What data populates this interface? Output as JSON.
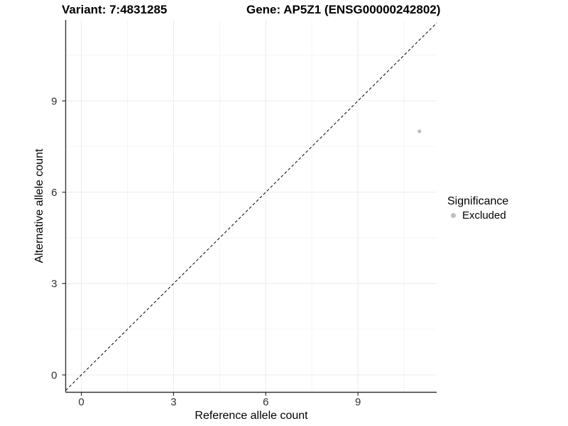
{
  "titles": {
    "variant": "Variant: 7:4831285",
    "gene": "Gene: AP5Z1 (ENSG00000242802)"
  },
  "legend": {
    "title": "Significance",
    "items": [
      {
        "label": "Excluded",
        "color": "#bebebe"
      }
    ]
  },
  "chart_data": {
    "type": "scatter",
    "title": "",
    "xlabel": "Reference allele count",
    "ylabel": "Alternative allele count",
    "xlim": [
      -0.51,
      11.56
    ],
    "ylim": [
      -0.57,
      11.66
    ],
    "x_ticks": [
      0,
      3,
      6,
      9
    ],
    "y_ticks": [
      0,
      3,
      6,
      9
    ],
    "x_minor_ticks": [
      1.5,
      4.5,
      7.5,
      10.5
    ],
    "y_minor_ticks": [
      1.5,
      4.5,
      7.5,
      10.5
    ],
    "grid": true,
    "legend_position": "right",
    "series": [
      {
        "name": "Excluded",
        "color": "#bebebe",
        "points": [
          {
            "x": 11,
            "y": 8
          }
        ]
      }
    ],
    "reference_line": {
      "slope": 1,
      "intercept": 0,
      "style": "dashed",
      "color": "#000000"
    },
    "colors": {
      "background": "#ffffff",
      "grid_major": "#ebebeb",
      "grid_minor": "#f5f5f5",
      "axis_line": "#333333",
      "tick_mark": "#333333",
      "tick_label": "#303030",
      "point": "#bebebe"
    }
  }
}
